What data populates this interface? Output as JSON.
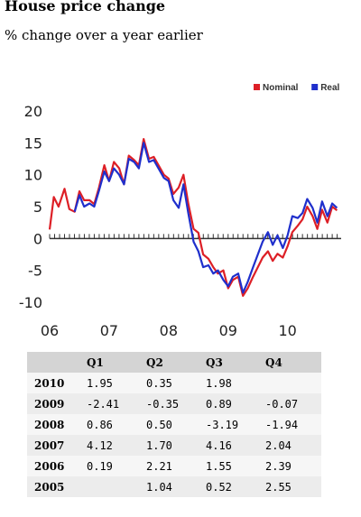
{
  "header": {
    "title": "House price change",
    "subtitle": "% change over a year earlier"
  },
  "colors": {
    "nominal": "#dd1f26",
    "real": "#1f2fcc",
    "zero_line": "#333333",
    "table_header": "#d4d4d4",
    "table_row_a": "#ececec",
    "table_row_b": "#f6f6f6"
  },
  "chart_data": {
    "type": "line",
    "title": "",
    "xlabel": "",
    "ylabel": "",
    "ylim": [
      -10,
      20
    ],
    "yticks": [
      "20",
      "15",
      "10",
      "5",
      "0",
      "-5",
      "-10"
    ],
    "xlim": [
      2006,
      2010.9
    ],
    "xticks": [
      {
        "value": 2006,
        "label": "06"
      },
      {
        "value": 2007,
        "label": "07"
      },
      {
        "value": 2008,
        "label": "08"
      },
      {
        "value": 2009,
        "label": "09"
      },
      {
        "value": 2010,
        "label": "10"
      }
    ],
    "legend": "top-right",
    "grid": false,
    "series": [
      {
        "name": "Nominal",
        "color": "#dd1f26",
        "points": [
          [
            2006.0,
            1.4
          ],
          [
            2006.07,
            6.5
          ],
          [
            2006.15,
            5.0
          ],
          [
            2006.25,
            7.8
          ],
          [
            2006.33,
            4.6
          ],
          [
            2006.42,
            4.2
          ],
          [
            2006.5,
            7.4
          ],
          [
            2006.58,
            6.0
          ],
          [
            2006.67,
            6.0
          ],
          [
            2006.75,
            5.4
          ],
          [
            2006.83,
            8.0
          ],
          [
            2006.92,
            11.5
          ],
          [
            2007.0,
            9.0
          ],
          [
            2007.08,
            12.0
          ],
          [
            2007.17,
            11.0
          ],
          [
            2007.25,
            8.5
          ],
          [
            2007.33,
            13.0
          ],
          [
            2007.42,
            12.3
          ],
          [
            2007.5,
            11.5
          ],
          [
            2007.58,
            15.6
          ],
          [
            2007.67,
            12.5
          ],
          [
            2007.75,
            12.8
          ],
          [
            2007.83,
            11.5
          ],
          [
            2007.92,
            10.0
          ],
          [
            2008.0,
            9.4
          ],
          [
            2008.08,
            7.0
          ],
          [
            2008.17,
            8.0
          ],
          [
            2008.25,
            10.0
          ],
          [
            2008.33,
            5.5
          ],
          [
            2008.42,
            1.5
          ],
          [
            2008.5,
            0.9
          ],
          [
            2008.58,
            -2.5
          ],
          [
            2008.67,
            -3.2
          ],
          [
            2008.75,
            -4.5
          ],
          [
            2008.83,
            -5.5
          ],
          [
            2008.92,
            -5.0
          ],
          [
            2009.0,
            -7.8
          ],
          [
            2009.08,
            -6.5
          ],
          [
            2009.17,
            -6.0
          ],
          [
            2009.25,
            -9.0
          ],
          [
            2009.33,
            -7.8
          ],
          [
            2009.42,
            -6.0
          ],
          [
            2009.5,
            -4.5
          ],
          [
            2009.58,
            -3.0
          ],
          [
            2009.67,
            -2.0
          ],
          [
            2009.75,
            -3.5
          ],
          [
            2009.83,
            -2.4
          ],
          [
            2009.92,
            -3.0
          ],
          [
            2010.0,
            -1.2
          ],
          [
            2010.08,
            1.0
          ],
          [
            2010.17,
            2.0
          ],
          [
            2010.25,
            3.0
          ],
          [
            2010.33,
            5.0
          ],
          [
            2010.42,
            3.5
          ],
          [
            2010.5,
            1.5
          ],
          [
            2010.58,
            4.5
          ],
          [
            2010.67,
            2.5
          ],
          [
            2010.75,
            5.0
          ],
          [
            2010.83,
            4.4
          ]
        ]
      },
      {
        "name": "Real",
        "color": "#1f2fcc",
        "points": [
          [
            2006.42,
            4.2
          ],
          [
            2006.5,
            6.8
          ],
          [
            2006.58,
            5.0
          ],
          [
            2006.67,
            5.5
          ],
          [
            2006.75,
            5.0
          ],
          [
            2006.83,
            7.5
          ],
          [
            2006.92,
            10.5
          ],
          [
            2007.0,
            9.0
          ],
          [
            2007.08,
            11.0
          ],
          [
            2007.17,
            10.0
          ],
          [
            2007.25,
            8.5
          ],
          [
            2007.33,
            12.5
          ],
          [
            2007.42,
            12.0
          ],
          [
            2007.5,
            11.0
          ],
          [
            2007.58,
            15.0
          ],
          [
            2007.67,
            12.0
          ],
          [
            2007.75,
            12.3
          ],
          [
            2007.83,
            11.0
          ],
          [
            2007.92,
            9.5
          ],
          [
            2008.0,
            9.0
          ],
          [
            2008.08,
            6.0
          ],
          [
            2008.17,
            4.8
          ],
          [
            2008.25,
            8.5
          ],
          [
            2008.33,
            4.0
          ],
          [
            2008.42,
            -0.5
          ],
          [
            2008.5,
            -2.0
          ],
          [
            2008.58,
            -4.5
          ],
          [
            2008.67,
            -4.2
          ],
          [
            2008.75,
            -5.5
          ],
          [
            2008.83,
            -5.0
          ],
          [
            2008.92,
            -6.5
          ],
          [
            2009.0,
            -7.5
          ],
          [
            2009.08,
            -6.0
          ],
          [
            2009.17,
            -5.5
          ],
          [
            2009.25,
            -8.5
          ],
          [
            2009.33,
            -6.8
          ],
          [
            2009.42,
            -4.5
          ],
          [
            2009.5,
            -2.5
          ],
          [
            2009.58,
            -0.5
          ],
          [
            2009.67,
            1.0
          ],
          [
            2009.75,
            -1.0
          ],
          [
            2009.83,
            0.5
          ],
          [
            2009.92,
            -1.5
          ],
          [
            2010.0,
            0.5
          ],
          [
            2010.08,
            3.5
          ],
          [
            2010.17,
            3.2
          ],
          [
            2010.25,
            4.0
          ],
          [
            2010.33,
            6.2
          ],
          [
            2010.42,
            4.8
          ],
          [
            2010.5,
            2.5
          ],
          [
            2010.58,
            5.8
          ],
          [
            2010.67,
            3.5
          ],
          [
            2010.75,
            5.5
          ],
          [
            2010.83,
            4.8
          ]
        ]
      }
    ]
  },
  "table": {
    "columns": [
      "",
      "Q1",
      "Q2",
      "Q3",
      "Q4"
    ],
    "rows": [
      {
        "year": "2010",
        "values": [
          "1.95",
          "0.35",
          "1.98",
          ""
        ]
      },
      {
        "year": "2009",
        "values": [
          "-2.41",
          "-0.35",
          "0.89",
          "-0.07"
        ]
      },
      {
        "year": "2008",
        "values": [
          "0.86",
          "0.50",
          "-3.19",
          "-1.94"
        ]
      },
      {
        "year": "2007",
        "values": [
          "4.12",
          "1.70",
          "4.16",
          "2.04"
        ]
      },
      {
        "year": "2006",
        "values": [
          "0.19",
          "2.21",
          "1.55",
          "2.39"
        ]
      },
      {
        "year": "2005",
        "values": [
          "",
          "1.04",
          "0.52",
          "2.55"
        ]
      }
    ]
  }
}
